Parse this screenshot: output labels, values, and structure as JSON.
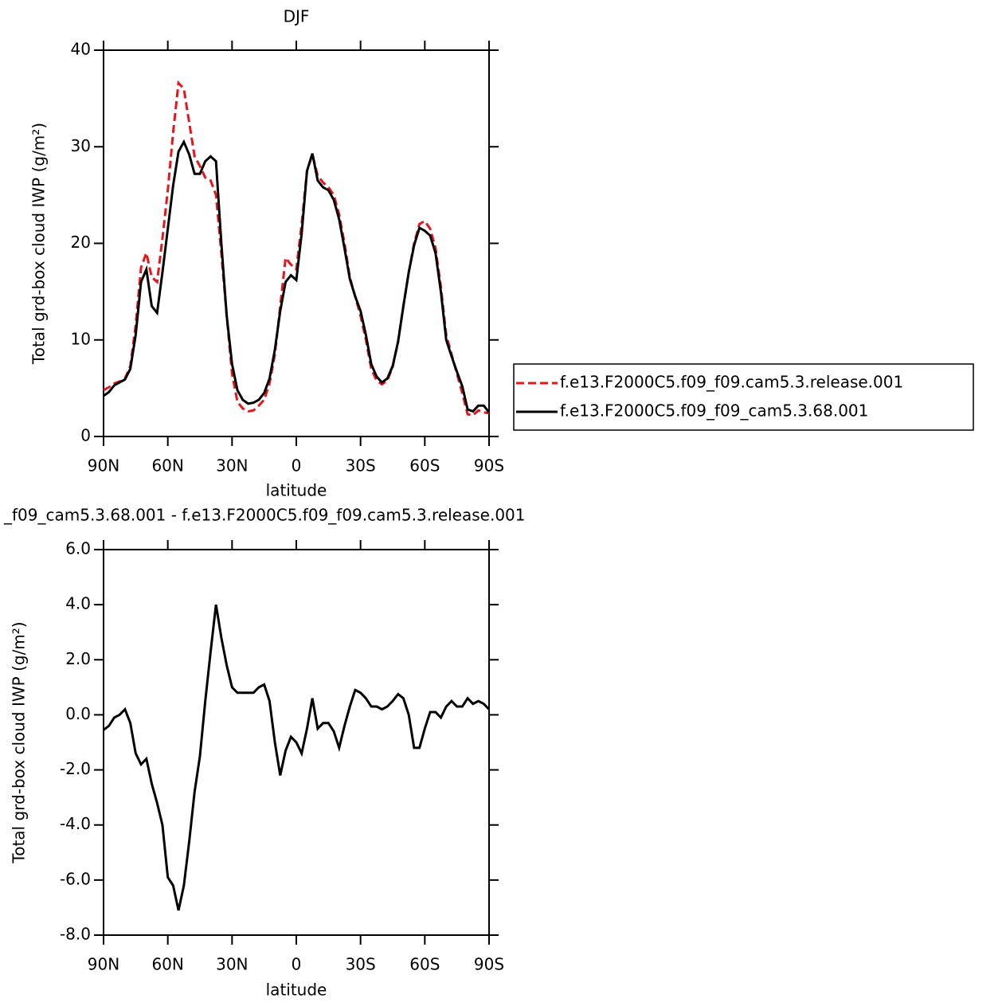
{
  "chart_data": [
    {
      "type": "line",
      "title": "DJF",
      "xlabel": "latitude",
      "ylabel": "Total grd-box cloud IWP (g/m²)",
      "x": [
        90,
        87.5,
        85,
        82.5,
        80,
        77.5,
        75,
        72.5,
        70,
        67.5,
        65,
        62.5,
        60,
        57.5,
        55,
        52.5,
        50,
        47.5,
        45,
        42.5,
        40,
        37.5,
        35,
        32.5,
        30,
        27.5,
        25,
        22.5,
        20,
        17.5,
        15,
        12.5,
        10,
        7.5,
        5,
        2.5,
        0,
        -2.5,
        -5,
        -7.5,
        -10,
        -12.5,
        -15,
        -17.5,
        -20,
        -22.5,
        -25,
        -27.5,
        -30,
        -32.5,
        -35,
        -37.5,
        -40,
        -42.5,
        -45,
        -47.5,
        -50,
        -52.5,
        -55,
        -57.5,
        -60,
        -62.5,
        -65,
        -67.5,
        -70,
        -72.5,
        -75,
        -77.5,
        -80,
        -82.5,
        -85,
        -87.5,
        -90
      ],
      "series": [
        {
          "name": "f.e13.F2000C5.f09_f09.cam5.3.release.001",
          "color": "#e8141c",
          "line_style": "dashed",
          "values": [
            4.8,
            5.1,
            5.5,
            5.7,
            6.0,
            7.3,
            11.5,
            17.5,
            19,
            16.5,
            16,
            20.5,
            25.5,
            31.5,
            36.6,
            36,
            32.5,
            29,
            28,
            26.8,
            26.5,
            25,
            19,
            12.5,
            6.5,
            3.6,
            2.9,
            2.6,
            2.7,
            3.2,
            3.8,
            5.5,
            8.5,
            13.5,
            18.5,
            17.8,
            17.3,
            22,
            27.5,
            29.2,
            27,
            26.3,
            25.8,
            25,
            23,
            20,
            16.5,
            14.5,
            12.5,
            10,
            7,
            5.8,
            5.4,
            5.8,
            7.2,
            9.8,
            13.5,
            17,
            20,
            22,
            22.3,
            21.5,
            19.5,
            15.5,
            10.5,
            8.5,
            6.5,
            4.5,
            2.3,
            2.2,
            2.7,
            2.5,
            2.4
          ]
        },
        {
          "name": "f.e13.F2000C5.f09_f09_cam5.3.68.001",
          "color": "#000000",
          "line_style": "solid",
          "values": [
            4.2,
            4.6,
            5.3,
            5.6,
            5.9,
            7.0,
            10.5,
            16.0,
            17.3,
            13.5,
            12.8,
            17,
            21.5,
            26,
            29.5,
            30.5,
            29.2,
            27.2,
            27.2,
            28.5,
            29,
            28.5,
            20,
            12.5,
            7.5,
            4.8,
            3.8,
            3.4,
            3.5,
            3.8,
            4.5,
            6,
            9,
            13,
            16,
            16.7,
            16.2,
            21,
            27.5,
            29.3,
            26.5,
            25.8,
            25.5,
            24.5,
            22.5,
            19.5,
            16.3,
            14.5,
            13,
            10.5,
            7.5,
            6.2,
            5.6,
            6,
            7.3,
            9.8,
            13.5,
            17,
            19.8,
            21.6,
            21.3,
            20.8,
            19,
            15,
            10,
            8.3,
            6.7,
            5.2,
            2.8,
            2.6,
            3.2,
            3.2,
            2.5
          ]
        }
      ],
      "xlim": [
        90,
        -90
      ],
      "xticks": [
        {
          "value": 90,
          "label": "90N"
        },
        {
          "value": 60,
          "label": "60N"
        },
        {
          "value": 30,
          "label": "30N"
        },
        0,
        {
          "value": -30,
          "label": "30S"
        },
        {
          "value": -60,
          "label": "60S"
        },
        {
          "value": -90,
          "label": "90S"
        }
      ],
      "ylim": [
        0,
        40
      ],
      "yticks": [
        0,
        10,
        20,
        30,
        40
      ],
      "legend": "right"
    },
    {
      "type": "line",
      "title": "_f09_cam5.3.68.001 - f.e13.F2000C5.f09_f09.cam5.3.release.001",
      "xlabel": "latitude",
      "ylabel": "Total grd-box cloud IWP (g/m²)",
      "x": [
        90,
        87.5,
        85,
        82.5,
        80,
        77.5,
        75,
        72.5,
        70,
        67.5,
        65,
        62.5,
        60,
        57.5,
        55,
        52.5,
        50,
        47.5,
        45,
        42.5,
        40,
        37.5,
        35,
        32.5,
        30,
        27.5,
        25,
        22.5,
        20,
        17.5,
        15,
        12.5,
        10,
        7.5,
        5,
        2.5,
        0,
        -2.5,
        -5,
        -7.5,
        -10,
        -12.5,
        -15,
        -17.5,
        -20,
        -22.5,
        -25,
        -27.5,
        -30,
        -32.5,
        -35,
        -37.5,
        -40,
        -42.5,
        -45,
        -47.5,
        -50,
        -52.5,
        -55,
        -57.5,
        -60,
        -62.5,
        -65,
        -67.5,
        -70,
        -72.5,
        -75,
        -77.5,
        -80,
        -82.5,
        -85,
        -87.5,
        -90
      ],
      "values": [
        -0.55,
        -0.4,
        -0.1,
        0,
        0.2,
        -0.3,
        -1.4,
        -1.8,
        -1.6,
        -2.5,
        -3.2,
        -4,
        -5.9,
        -6.2,
        -7.1,
        -6.2,
        -4.6,
        -2.8,
        -1.5,
        0.5,
        2.3,
        4.0,
        2.8,
        1.8,
        1.0,
        0.8,
        0.8,
        0.8,
        0.8,
        1.0,
        1.1,
        0.5,
        -1.0,
        -2.2,
        -1.3,
        -0.8,
        -1.0,
        -1.4,
        -0.5,
        0.6,
        -0.5,
        -0.3,
        -0.3,
        -0.6,
        -1.2,
        -0.4,
        0.3,
        0.9,
        0.8,
        0.6,
        0.3,
        0.3,
        0.2,
        0.3,
        0.5,
        0.75,
        0.6,
        0.0,
        -1.2,
        -1.2,
        -0.5,
        0.1,
        0.1,
        -0.1,
        0.3,
        0.5,
        0.3,
        0.3,
        0.6,
        0.4,
        0.5,
        0.4,
        0.2
      ],
      "color": "#000000",
      "xlim": [
        90,
        -90
      ],
      "xticks": [
        {
          "value": 90,
          "label": "90N"
        },
        {
          "value": 60,
          "label": "60N"
        },
        {
          "value": 30,
          "label": "30N"
        },
        0,
        {
          "value": -30,
          "label": "30S"
        },
        {
          "value": -60,
          "label": "60S"
        },
        {
          "value": -90,
          "label": "90S"
        }
      ],
      "ylim": [
        -8,
        6
      ],
      "yticks": [
        {
          "value": -8,
          "label": "-8.0"
        },
        {
          "value": -6,
          "label": "-6.0"
        },
        {
          "value": -4,
          "label": "-4.0"
        },
        {
          "value": -2,
          "label": "-2.0"
        },
        {
          "value": 0,
          "label": "0.0"
        },
        {
          "value": 2,
          "label": "2.0"
        },
        {
          "value": 4,
          "label": "4.0"
        },
        {
          "value": 6,
          "label": "6.0"
        }
      ]
    }
  ]
}
